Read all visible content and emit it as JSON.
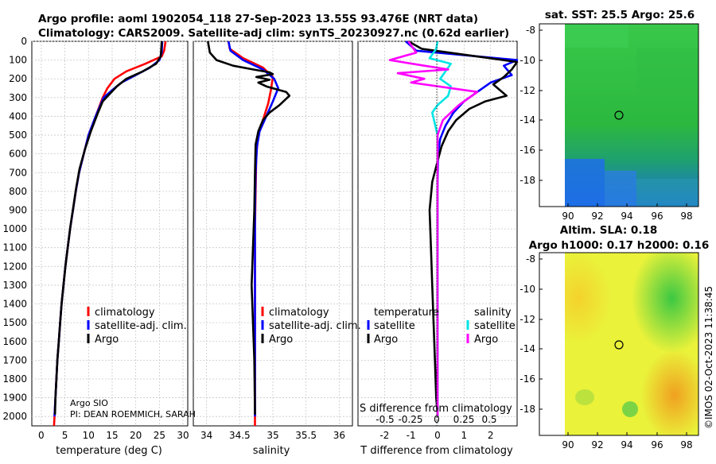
{
  "header": {
    "title_line1": "Argo profile: aoml 1902054_118 27-Sep-2023 13.55S 93.476E (NRT data)",
    "title_line2": "Climatology: CARS2009. Satellite-adj clim: synTS_20230927.nc (0.62d earlier)"
  },
  "colors": {
    "climatology": "#ff0000",
    "satellite": "#0000ff",
    "argo": "#000000",
    "sat_salinity": "#00e5e5",
    "argo_salinity": "#ff00ff"
  },
  "pressure_ticks": [
    "0",
    "100",
    "200",
    "300",
    "400",
    "500",
    "600",
    "700",
    "800",
    "900",
    "1000",
    "1100",
    "1200",
    "1300",
    "1400",
    "1500",
    "1600",
    "1700",
    "1800",
    "1900",
    "2000"
  ],
  "chart_data": [
    {
      "type": "line",
      "id": "temperature",
      "xlabel": "temperature (deg C)",
      "ylabel": "pressure (dbar)",
      "xlim": [
        -2,
        31
      ],
      "ylim": [
        2050,
        0
      ],
      "x_ticks": [
        "0",
        "5",
        "10",
        "15",
        "20",
        "25",
        "30"
      ],
      "legend": [
        "climatology",
        "satellite-adj. clim.",
        "Argo"
      ],
      "annotation_line1": "Argo SIO",
      "annotation_line2": "PI: DEAN ROEMMICH, SARAH",
      "series": [
        {
          "name": "climatology",
          "color": "#ff0000",
          "points": [
            [
              26.3,
              0
            ],
            [
              26,
              50
            ],
            [
              25.5,
              80
            ],
            [
              22,
              120
            ],
            [
              18,
              160
            ],
            [
              15.5,
              200
            ],
            [
              14,
              250
            ],
            [
              13,
              300
            ],
            [
              11.5,
              400
            ],
            [
              10,
              500
            ],
            [
              9,
              600
            ],
            [
              8,
              700
            ],
            [
              7.3,
              800
            ],
            [
              6.7,
              900
            ],
            [
              6.1,
              1000
            ],
            [
              5.6,
              1100
            ],
            [
              5.1,
              1200
            ],
            [
              4.7,
              1300
            ],
            [
              4.3,
              1400
            ],
            [
              4,
              1500
            ],
            [
              3.7,
              1600
            ],
            [
              3.4,
              1700
            ],
            [
              3.2,
              1800
            ],
            [
              3,
              1900
            ],
            [
              2.8,
              2000
            ],
            [
              2.7,
              2050
            ]
          ]
        },
        {
          "name": "satellite-adj. clim.",
          "color": "#0000ff",
          "points": [
            [
              25.6,
              0
            ],
            [
              25.5,
              60
            ],
            [
              25,
              100
            ],
            [
              23,
              140
            ],
            [
              20,
              180
            ],
            [
              17,
              220
            ],
            [
              15,
              260
            ],
            [
              13.2,
              300
            ],
            [
              11.5,
              400
            ],
            [
              10,
              500
            ],
            [
              9,
              600
            ],
            [
              8,
              700
            ],
            [
              7.3,
              800
            ],
            [
              6.7,
              900
            ],
            [
              6.1,
              1000
            ],
            [
              5.6,
              1100
            ],
            [
              5.1,
              1200
            ],
            [
              4.7,
              1300
            ],
            [
              4.3,
              1400
            ],
            [
              4,
              1500
            ],
            [
              3.7,
              1600
            ],
            [
              3.4,
              1700
            ],
            [
              3.2,
              1800
            ],
            [
              3,
              1900
            ],
            [
              2.8,
              2000
            ]
          ]
        },
        {
          "name": "Argo",
          "color": "#000000",
          "points": [
            [
              25.5,
              0
            ],
            [
              25.3,
              80
            ],
            [
              24.3,
              120
            ],
            [
              21.5,
              160
            ],
            [
              18,
              200
            ],
            [
              16,
              240
            ],
            [
              14.5,
              280
            ],
            [
              13,
              320
            ],
            [
              12,
              380
            ],
            [
              10.5,
              480
            ],
            [
              9.2,
              580
            ],
            [
              8.1,
              680
            ],
            [
              7.4,
              780
            ],
            [
              6.8,
              880
            ],
            [
              6.2,
              980
            ],
            [
              5.6,
              1100
            ],
            [
              5.1,
              1200
            ],
            [
              4.7,
              1300
            ],
            [
              4.3,
              1400
            ],
            [
              4,
              1500
            ],
            [
              3.7,
              1600
            ],
            [
              3.4,
              1700
            ],
            [
              3.2,
              1800
            ],
            [
              3,
              1900
            ],
            [
              2.9,
              1990
            ]
          ]
        }
      ]
    },
    {
      "type": "line",
      "id": "salinity",
      "xlabel": "salinity",
      "xlim": [
        33.8,
        36.2
      ],
      "ylim": [
        2050,
        0
      ],
      "x_ticks": [
        "34",
        "34.5",
        "35",
        "35.5",
        "36"
      ],
      "legend": [
        "climatology",
        "satellite-adj. clim.",
        "Argo"
      ],
      "series": [
        {
          "name": "climatology",
          "color": "#ff0000",
          "points": [
            [
              34.33,
              0
            ],
            [
              34.35,
              40
            ],
            [
              34.55,
              90
            ],
            [
              34.85,
              140
            ],
            [
              35.0,
              190
            ],
            [
              34.97,
              260
            ],
            [
              34.93,
              330
            ],
            [
              34.85,
              420
            ],
            [
              34.78,
              500
            ],
            [
              34.75,
              600
            ],
            [
              34.74,
              800
            ],
            [
              34.73,
              1000
            ],
            [
              34.73,
              1300
            ],
            [
              34.73,
              1600
            ],
            [
              34.73,
              2050
            ]
          ]
        },
        {
          "name": "satellite-adj. clim.",
          "color": "#0000ff",
          "points": [
            [
              34.33,
              0
            ],
            [
              34.36,
              50
            ],
            [
              34.55,
              100
            ],
            [
              34.85,
              150
            ],
            [
              35.02,
              200
            ],
            [
              35.08,
              250
            ],
            [
              35.0,
              320
            ],
            [
              34.9,
              400
            ],
            [
              34.8,
              480
            ],
            [
              34.76,
              560
            ],
            [
              34.74,
              700
            ],
            [
              34.73,
              900
            ],
            [
              34.73,
              1200
            ],
            [
              34.73,
              1600
            ],
            [
              34.73,
              2000
            ]
          ]
        },
        {
          "name": "Argo",
          "color": "#000000",
          "points": [
            [
              34.02,
              0
            ],
            [
              34.05,
              60
            ],
            [
              34.15,
              100
            ],
            [
              34.4,
              130
            ],
            [
              34.7,
              150
            ],
            [
              34.95,
              165
            ],
            [
              35.0,
              175
            ],
            [
              34.75,
              190
            ],
            [
              34.95,
              205
            ],
            [
              34.78,
              220
            ],
            [
              34.9,
              240
            ],
            [
              35.2,
              270
            ],
            [
              35.25,
              290
            ],
            [
              35.1,
              340
            ],
            [
              34.95,
              380
            ],
            [
              34.85,
              420
            ],
            [
              34.78,
              480
            ],
            [
              34.74,
              550
            ],
            [
              34.73,
              700
            ],
            [
              34.72,
              900
            ],
            [
              34.7,
              1100
            ],
            [
              34.68,
              1300
            ],
            [
              34.7,
              1500
            ],
            [
              34.72,
              1700
            ],
            [
              34.73,
              1990
            ]
          ]
        }
      ]
    },
    {
      "type": "line",
      "id": "difference",
      "xlabel": "T difference from climatology",
      "xlabel_top": "S difference from climatology",
      "xlim": [
        -3,
        3
      ],
      "ylim": [
        2050,
        0
      ],
      "x_ticks": [
        "-2",
        "-1",
        "0",
        "1",
        "2"
      ],
      "x_ticks_salinity": [
        "-0.5",
        "-0.25",
        "0",
        "0.25",
        "0.5"
      ],
      "legend_temp_header": "temperature",
      "legend_sal_header": "salinity",
      "legend_temp": [
        "satellite",
        "Argo"
      ],
      "legend_sal": [
        "satellite",
        "Argo"
      ],
      "series": [
        {
          "name": "temperature satellite",
          "color": "#0000ff",
          "points": [
            [
              -1.2,
              0
            ],
            [
              -0.8,
              50
            ],
            [
              3.0,
              100
            ],
            [
              2.5,
              130
            ],
            [
              2.8,
              180
            ],
            [
              2.0,
              220
            ],
            [
              1.5,
              270
            ],
            [
              1.0,
              320
            ],
            [
              0.6,
              380
            ],
            [
              0.3,
              450
            ],
            [
              0.1,
              520
            ],
            [
              0.02,
              600
            ],
            [
              0,
              800
            ],
            [
              0,
              1200
            ],
            [
              0,
              1600
            ],
            [
              0,
              2000
            ]
          ]
        },
        {
          "name": "temperature Argo",
          "color": "#000000",
          "points": [
            [
              -1.1,
              0
            ],
            [
              -0.6,
              40
            ],
            [
              3.0,
              110
            ],
            [
              2.8,
              150
            ],
            [
              2.5,
              190
            ],
            [
              2.1,
              230
            ],
            [
              2.6,
              290
            ],
            [
              1.8,
              320
            ],
            [
              1.2,
              360
            ],
            [
              0.7,
              420
            ],
            [
              0.4,
              480
            ],
            [
              0.15,
              560
            ],
            [
              0,
              640
            ],
            [
              -0.2,
              750
            ],
            [
              -0.3,
              900
            ],
            [
              -0.25,
              1100
            ],
            [
              -0.2,
              1300
            ],
            [
              -0.15,
              1500
            ],
            [
              -0.1,
              1700
            ],
            [
              -0.05,
              1900
            ],
            [
              0,
              1990
            ]
          ]
        },
        {
          "name": "salinity satellite",
          "color": "#00e5e5",
          "points": [
            [
              0,
              0
            ],
            [
              -0.05,
              40
            ],
            [
              -0.3,
              90
            ],
            [
              0.5,
              120
            ],
            [
              0.1,
              200
            ],
            [
              0.5,
              240
            ],
            [
              0.4,
              290
            ],
            [
              0,
              340
            ],
            [
              -0.2,
              380
            ],
            [
              0,
              500
            ],
            [
              0,
              800
            ],
            [
              0,
              1200
            ],
            [
              0,
              1600
            ],
            [
              0,
              2000
            ]
          ]
        },
        {
          "name": "salinity Argo",
          "color": "#ff00ff",
          "points": [
            [
              -1.1,
              0
            ],
            [
              -0.8,
              60
            ],
            [
              -1.8,
              100
            ],
            [
              -0.5,
              130
            ],
            [
              0.4,
              150
            ],
            [
              -1.5,
              170
            ],
            [
              -0.5,
              200
            ],
            [
              -1.0,
              220
            ],
            [
              1.5,
              270
            ],
            [
              1.2,
              300
            ],
            [
              0.8,
              340
            ],
            [
              0.5,
              380
            ],
            [
              0.2,
              420
            ],
            [
              0,
              500
            ],
            [
              0,
              800
            ],
            [
              0,
              1200
            ],
            [
              0,
              1600
            ],
            [
              0,
              2000
            ]
          ]
        }
      ]
    }
  ],
  "map_sst": {
    "title": "sat. SST: 25.5 Argo: 25.6",
    "x_ticks": [
      "90",
      "92",
      "94",
      "96",
      "98"
    ],
    "y_ticks": [
      "-8",
      "-10",
      "-12",
      "-14",
      "-16",
      "-18"
    ]
  },
  "map_sla": {
    "title_line1": "Altim. SLA: 0.18",
    "title_line2": "Argo h1000: 0.17 h2000: 0.16",
    "x_ticks": [
      "90",
      "92",
      "94",
      "96",
      "98"
    ],
    "y_ticks": [
      "-8",
      "-10",
      "-12",
      "-14",
      "-16",
      "-18"
    ]
  },
  "watermark": "©IMOS 02-Oct-2023 11:38:45"
}
